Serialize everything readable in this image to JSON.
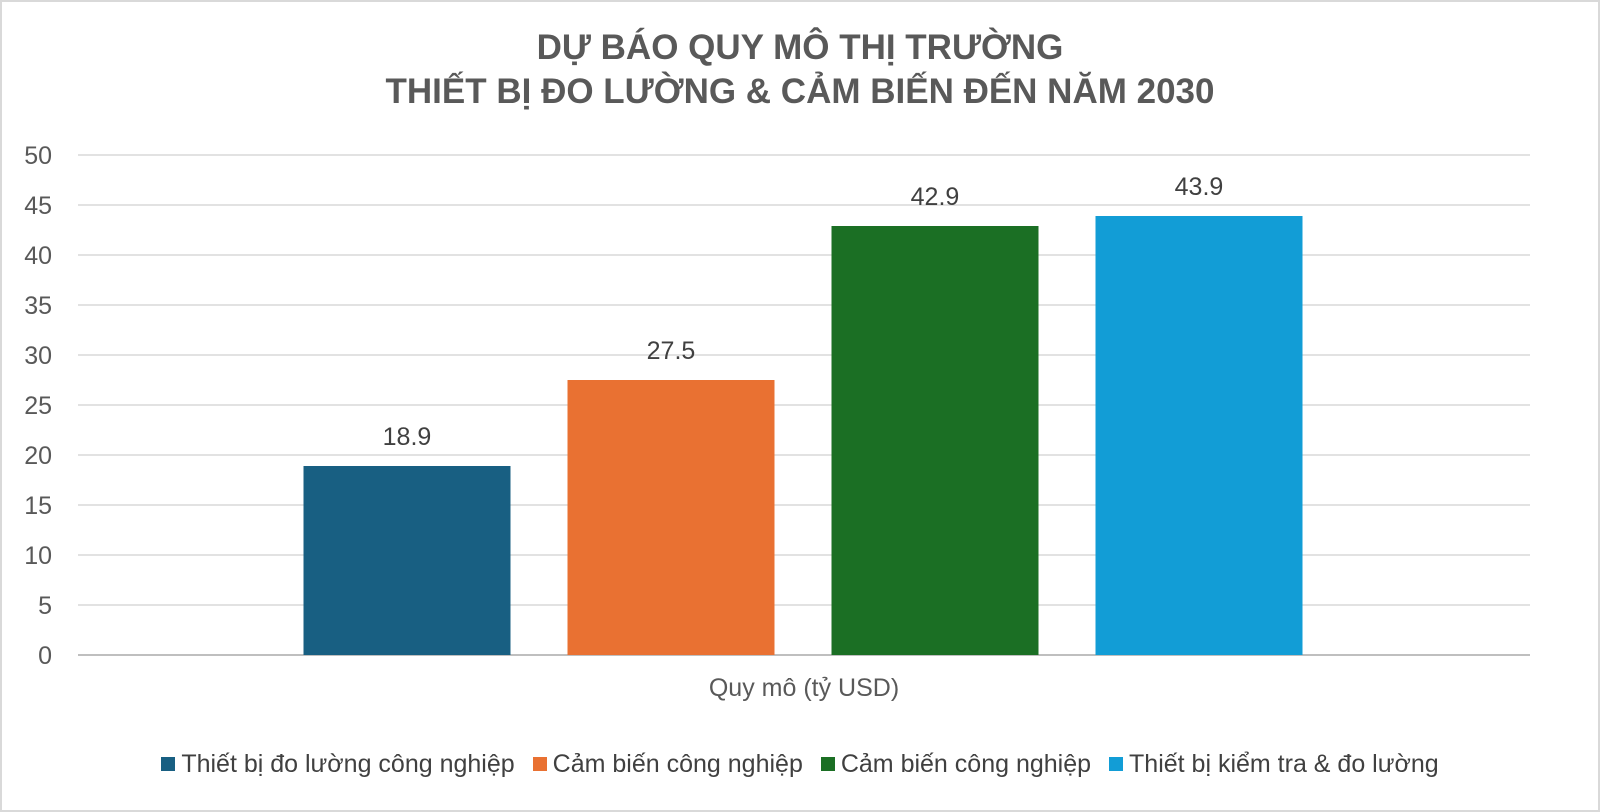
{
  "chart_data": {
    "type": "bar",
    "title": [
      "DỰ BÁO QUY MÔ THỊ TRƯỜNG",
      "THIẾT BỊ ĐO LƯỜNG & CẢM BIẾN ĐẾN NĂM 2030"
    ],
    "xlabel": "Quy mô (tỷ USD)",
    "ylabel": "",
    "ylim": [
      0,
      50
    ],
    "yticks": [
      "0",
      "5",
      "10",
      "15",
      "20",
      "25",
      "30",
      "35",
      "40",
      "45",
      "50"
    ],
    "grid": true,
    "legend_position": "bottom",
    "series": [
      {
        "name": "Thiết bị đo lường công nghiệp",
        "value": 18.9,
        "label": "18.9",
        "color": "#185f82"
      },
      {
        "name": "Cảm biến công nghiệp",
        "value": 27.5,
        "label": "27.5",
        "color": "#e97132"
      },
      {
        "name": "Cảm biến công nghiệp",
        "value": 42.9,
        "label": "42.9",
        "color": "#1b6f24"
      },
      {
        "name": "Thiết bị kiểm tra & đo lường",
        "value": 43.9,
        "label": "43.9",
        "color": "#129dd6"
      }
    ]
  }
}
